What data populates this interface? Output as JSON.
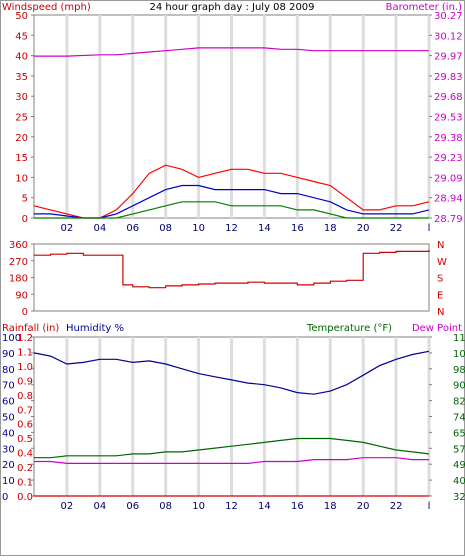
{
  "colors": {
    "wind_speed": "#ff0000",
    "wind_gust": "#ff0000",
    "wind_avg": "#0000cc",
    "wind_min": "#008000",
    "barometer": "#cc00cc",
    "wind_dir": "#cc0000",
    "humidity": "#000099",
    "temperature": "#006600",
    "dew_point": "#cc00cc",
    "rainfall": "#cc0000",
    "axis_left": "#cc0000",
    "axis_right": "#cc00cc",
    "axis_humidity": "#000099",
    "axis_temp": "#006600"
  },
  "chart_data": [
    {
      "type": "line",
      "title": "24 hour graph day : July 08 2009",
      "ylabel_left": "Windspeed (mph)",
      "ylabel_right": "Barometer (in.)",
      "xlim": [
        0,
        24
      ],
      "x_ticks": [
        "02",
        "04",
        "06",
        "08",
        "10",
        "12",
        "14",
        "16",
        "18",
        "20",
        "22",
        "l"
      ],
      "ylim_left": [
        0,
        50
      ],
      "y_ticks_left": [
        "0",
        "5",
        "10",
        "15",
        "20",
        "25",
        "30",
        "35",
        "40",
        "45",
        "50"
      ],
      "ylim_right": [
        28.79,
        30.27
      ],
      "y_ticks_right": [
        "28.79",
        "28.94",
        "29.09",
        "29.23",
        "29.38",
        "29.53",
        "29.68",
        "29.83",
        "29.97",
        "30.12",
        "30.27"
      ],
      "grid": true,
      "series": [
        {
          "key": "barometer",
          "axis": "right",
          "x": [
            0,
            2,
            4,
            5,
            6,
            7,
            8,
            9,
            10,
            11,
            12,
            13,
            14,
            15,
            16,
            17,
            18,
            19,
            20,
            21,
            22,
            23,
            24
          ],
          "values": [
            29.97,
            29.97,
            29.98,
            29.98,
            29.99,
            30.0,
            30.01,
            30.02,
            30.03,
            30.03,
            30.03,
            30.03,
            30.03,
            30.02,
            30.02,
            30.01,
            30.01,
            30.01,
            30.01,
            30.01,
            30.01,
            30.01,
            30.01
          ]
        },
        {
          "key": "wind_gust",
          "axis": "left",
          "x": [
            0,
            1,
            2,
            3,
            4,
            5,
            6,
            7,
            8,
            9,
            10,
            11,
            12,
            13,
            14,
            15,
            16,
            17,
            18,
            19,
            20,
            21,
            22,
            23,
            24
          ],
          "values": [
            3,
            2,
            1,
            0,
            0,
            2,
            6,
            11,
            13,
            12,
            10,
            11,
            12,
            12,
            11,
            11,
            10,
            9,
            8,
            5,
            2,
            2,
            3,
            3,
            4
          ]
        },
        {
          "key": "wind_avg",
          "axis": "left",
          "x": [
            0,
            1,
            2,
            3,
            4,
            5,
            6,
            7,
            8,
            9,
            10,
            11,
            12,
            13,
            14,
            15,
            16,
            17,
            18,
            19,
            20,
            21,
            22,
            23,
            24
          ],
          "values": [
            1,
            1,
            0.5,
            0,
            0,
            1,
            3,
            5,
            7,
            8,
            8,
            7,
            7,
            7,
            7,
            6,
            6,
            5,
            4,
            2,
            1,
            1,
            1,
            1,
            2
          ]
        },
        {
          "key": "wind_min",
          "axis": "left",
          "x": [
            0,
            1,
            2,
            3,
            4,
            5,
            6,
            7,
            8,
            9,
            10,
            11,
            12,
            13,
            14,
            15,
            16,
            17,
            18,
            19,
            20,
            21,
            22,
            23,
            24
          ],
          "values": [
            0,
            0,
            0,
            0,
            0,
            0,
            1,
            2,
            3,
            4,
            4,
            4,
            3,
            3,
            3,
            3,
            2,
            2,
            1,
            0,
            0,
            0,
            0,
            0,
            0
          ]
        }
      ]
    },
    {
      "type": "line",
      "ylabel_left": "",
      "xlim": [
        0,
        24
      ],
      "ylim_left": [
        0,
        360
      ],
      "y_ticks_left": [
        "0",
        "90",
        "180",
        "270",
        "360"
      ],
      "y_ticks_right": [
        "N",
        "E",
        "S",
        "W",
        "N"
      ],
      "series": [
        {
          "key": "wind_dir",
          "axis": "left",
          "x": [
            0,
            1,
            2,
            3,
            4,
            5,
            5.4,
            6,
            7,
            8,
            9,
            10,
            11,
            12,
            13,
            14,
            15,
            16,
            17,
            18,
            19,
            19.8,
            20,
            21,
            22,
            23,
            24
          ],
          "values": [
            300,
            305,
            310,
            300,
            300,
            300,
            140,
            130,
            125,
            135,
            140,
            145,
            150,
            150,
            155,
            150,
            150,
            140,
            150,
            160,
            165,
            165,
            310,
            315,
            320,
            320,
            330
          ]
        }
      ]
    },
    {
      "type": "line",
      "ylabel_left": "Rainfall (in)",
      "ylabel_left2": "Humidity %",
      "ylabel_right": "Temperature (°F)",
      "ylabel_right2": "Dew Point",
      "xlim": [
        0,
        24
      ],
      "x_ticks": [
        "02",
        "04",
        "06",
        "08",
        "10",
        "12",
        "14",
        "16",
        "18",
        "20",
        "22",
        "l"
      ],
      "ylim_humidity": [
        0,
        100
      ],
      "y_ticks_humidity": [
        "0",
        "10",
        "20",
        "30",
        "40",
        "50",
        "60",
        "70",
        "80",
        "90",
        "100"
      ],
      "ylim_rain": [
        0,
        1.2
      ],
      "y_ticks_rain": [
        "0.0",
        "0.1",
        "0.2",
        "0.4",
        "0.5",
        "0.6",
        "0.7",
        "0.8",
        "0.9",
        "1.0",
        "1.1",
        "1.2"
      ],
      "ylim_temp": [
        32,
        115
      ],
      "y_ticks_temp": [
        "32",
        "40",
        "49",
        "57",
        "65",
        "74",
        "82",
        "90",
        "98",
        "107",
        "115"
      ],
      "series": [
        {
          "key": "humidity",
          "axis": "humidity",
          "x": [
            0,
            1,
            2,
            3,
            4,
            5,
            6,
            7,
            8,
            9,
            10,
            11,
            12,
            13,
            14,
            15,
            16,
            17,
            18,
            19,
            20,
            21,
            22,
            23,
            24
          ],
          "values": [
            90,
            88,
            83,
            84,
            86,
            86,
            84,
            85,
            83,
            80,
            77,
            75,
            73,
            71,
            70,
            68,
            65,
            64,
            66,
            70,
            76,
            82,
            86,
            89,
            91
          ]
        },
        {
          "key": "temperature",
          "axis": "temp",
          "x": [
            0,
            1,
            2,
            3,
            4,
            5,
            6,
            7,
            8,
            9,
            10,
            11,
            12,
            13,
            14,
            15,
            16,
            17,
            18,
            19,
            20,
            21,
            22,
            23,
            24
          ],
          "values": [
            52,
            52,
            53,
            53,
            53,
            53,
            54,
            54,
            55,
            55,
            56,
            57,
            58,
            59,
            60,
            61,
            62,
            62,
            62,
            61,
            60,
            58,
            56,
            55,
            54
          ]
        },
        {
          "key": "dew_point",
          "axis": "temp",
          "x": [
            0,
            1,
            2,
            3,
            4,
            5,
            6,
            7,
            8,
            9,
            10,
            11,
            12,
            13,
            14,
            15,
            16,
            17,
            18,
            19,
            20,
            21,
            22,
            23,
            24
          ],
          "values": [
            50,
            50,
            49,
            49,
            49,
            49,
            49,
            49,
            49,
            49,
            49,
            49,
            49,
            49,
            50,
            50,
            50,
            51,
            51,
            51,
            52,
            52,
            52,
            51,
            51
          ]
        },
        {
          "key": "rainfall",
          "axis": "rain",
          "x": [
            0,
            24
          ],
          "values": [
            0,
            0
          ]
        }
      ]
    }
  ]
}
